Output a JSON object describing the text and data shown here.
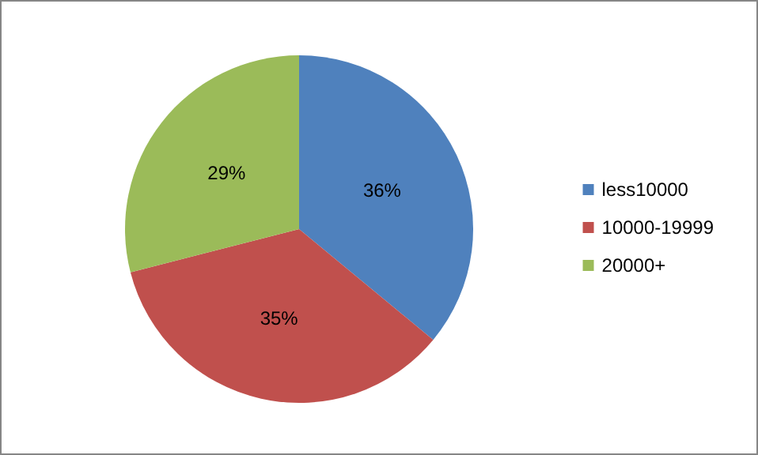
{
  "chart_data": {
    "type": "pie",
    "categories": [
      "less10000",
      "10000-19999",
      "20000+"
    ],
    "values": [
      36,
      35,
      29
    ],
    "colors": [
      "#4f81bd",
      "#c0504d",
      "#9bbb59"
    ],
    "value_labels": [
      "36%",
      "35%",
      "29%"
    ],
    "legend": "right"
  }
}
